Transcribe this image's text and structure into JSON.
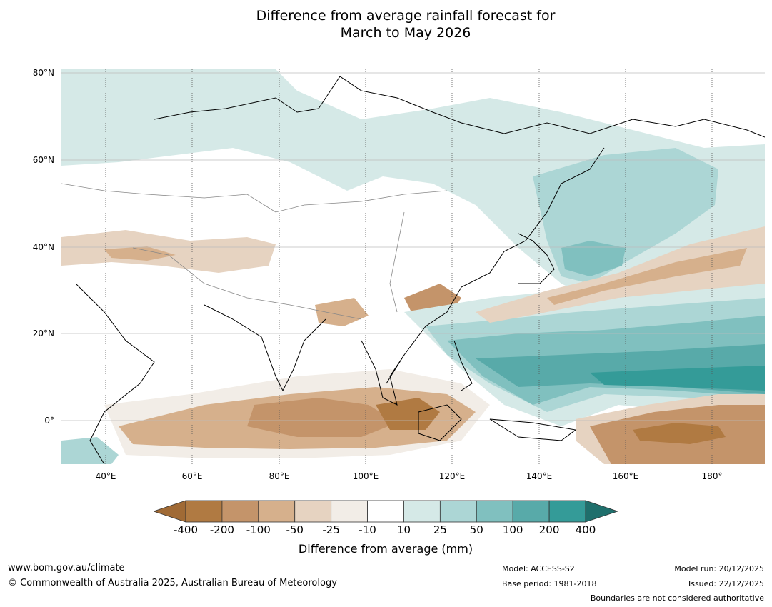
{
  "title_line1": "Difference from average rainfall forecast for",
  "title_line2": "March to May 2026",
  "map": {
    "lat_ticks": [
      "80°N",
      "60°N",
      "40°N",
      "20°N",
      "0°"
    ],
    "lon_ticks": [
      "40°E",
      "60°E",
      "80°E",
      "100°E",
      "120°E",
      "140°E",
      "160°E",
      "180°"
    ]
  },
  "colorbar": {
    "title": "Difference from average (mm)",
    "labels": [
      "-400",
      "-200",
      "-100",
      "-50",
      "-25",
      "-10",
      "10",
      "25",
      "50",
      "100",
      "200",
      "400"
    ],
    "colors": [
      "#a06a35",
      "#b07a42",
      "#c4946a",
      "#d6b08c",
      "#e6d3c1",
      "#f2ede7",
      "#ffffff",
      "#d5e9e7",
      "#acd6d5",
      "#80c0bf",
      "#58aaa9",
      "#349b98",
      "#1f6f6c"
    ]
  },
  "footer": {
    "url": "www.bom.gov.au/climate",
    "copyright": "© Commonwealth of Australia 2025, Australian Bureau of Meteorology",
    "model": "Model: ACCESS-S2",
    "base_period": "Base period: 1981-2018",
    "model_run": "Model run: 20/12/2025",
    "issued": "Issued: 22/12/2025",
    "disclaimer": "Boundaries are not considered authoritative"
  }
}
